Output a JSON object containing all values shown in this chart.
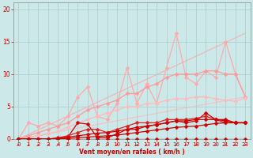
{
  "background_color": "#cce8e8",
  "grid_color": "#aacccc",
  "xlabel": "Vent moyen/en rafales ( km/h )",
  "xlabel_color": "#cc0000",
  "tick_color": "#cc0000",
  "xlim": [
    -0.5,
    23.5
  ],
  "ylim": [
    0,
    21
  ],
  "yticks": [
    0,
    5,
    10,
    15,
    20
  ],
  "xticks": [
    0,
    1,
    2,
    3,
    4,
    5,
    6,
    7,
    8,
    9,
    10,
    11,
    12,
    13,
    14,
    15,
    16,
    17,
    18,
    19,
    20,
    21,
    22,
    23
  ],
  "series": [
    {
      "x": [
        0,
        23
      ],
      "y": [
        0,
        16.3
      ],
      "color": "#ffaaaa",
      "linewidth": 0.8,
      "marker": null,
      "markersize": 0,
      "alpha": 0.9,
      "zorder": 1
    },
    {
      "x": [
        0,
        23
      ],
      "y": [
        0,
        6.5
      ],
      "color": "#ffbbbb",
      "linewidth": 0.8,
      "marker": null,
      "markersize": 0,
      "alpha": 0.9,
      "zorder": 1
    },
    {
      "x": [
        0,
        1,
        2,
        3,
        4,
        5,
        6,
        7,
        8,
        9,
        10,
        11,
        12,
        13,
        14,
        15,
        16,
        17,
        18,
        19,
        20,
        21,
        22,
        23
      ],
      "y": [
        0,
        2.5,
        2.0,
        2.5,
        2.0,
        3.5,
        6.5,
        8.0,
        3.5,
        3.0,
        5.5,
        11.0,
        5.5,
        8.5,
        5.5,
        11.0,
        16.3,
        9.5,
        8.5,
        10.5,
        9.5,
        15.0,
        10.0,
        6.5
      ],
      "color": "#ffaaaa",
      "linewidth": 0.9,
      "marker": "D",
      "markersize": 2.5,
      "alpha": 1.0,
      "zorder": 2
    },
    {
      "x": [
        0,
        1,
        2,
        3,
        4,
        5,
        6,
        7,
        8,
        9,
        10,
        11,
        12,
        13,
        14,
        15,
        16,
        17,
        18,
        19,
        20,
        21,
        22,
        23
      ],
      "y": [
        0,
        0.5,
        1.0,
        1.5,
        2.0,
        2.5,
        3.5,
        4.5,
        5.0,
        5.5,
        6.0,
        7.0,
        7.0,
        8.0,
        8.5,
        9.5,
        10.0,
        10.0,
        10.0,
        10.5,
        10.5,
        10.0,
        10.0,
        6.5
      ],
      "color": "#ff9999",
      "linewidth": 0.9,
      "marker": "D",
      "markersize": 2.5,
      "alpha": 1.0,
      "zorder": 3
    },
    {
      "x": [
        0,
        1,
        2,
        3,
        4,
        5,
        6,
        7,
        8,
        9,
        10,
        11,
        12,
        13,
        14,
        15,
        16,
        17,
        18,
        19,
        20,
        21,
        22,
        23
      ],
      "y": [
        0,
        0.2,
        0.5,
        0.8,
        1.2,
        1.8,
        2.5,
        3.0,
        3.5,
        4.0,
        4.5,
        5.0,
        5.0,
        5.5,
        5.5,
        6.0,
        6.2,
        6.2,
        6.5,
        6.5,
        6.2,
        6.0,
        5.8,
        6.3
      ],
      "color": "#ffbbbb",
      "linewidth": 0.9,
      "marker": "D",
      "markersize": 2.5,
      "alpha": 1.0,
      "zorder": 3
    },
    {
      "x": [
        0,
        1,
        2,
        3,
        4,
        5,
        6,
        7,
        8,
        9,
        10,
        11,
        12,
        13,
        14,
        15,
        16,
        17,
        18,
        19,
        20,
        21,
        22,
        23
      ],
      "y": [
        0,
        0,
        0,
        0,
        0.1,
        0.3,
        2.5,
        2.3,
        0.2,
        0.2,
        0.8,
        1.5,
        1.5,
        2.0,
        2.2,
        2.5,
        2.8,
        2.5,
        2.8,
        4.0,
        3.0,
        3.0,
        2.5,
        2.5
      ],
      "color": "#cc0000",
      "linewidth": 0.9,
      "marker": "D",
      "markersize": 2.5,
      "alpha": 1.0,
      "zorder": 4
    },
    {
      "x": [
        0,
        1,
        2,
        3,
        4,
        5,
        6,
        7,
        8,
        9,
        10,
        11,
        12,
        13,
        14,
        15,
        16,
        17,
        18,
        19,
        20,
        21,
        22,
        23
      ],
      "y": [
        0,
        0,
        0,
        0,
        0.2,
        0.5,
        1.0,
        1.5,
        1.5,
        1.0,
        1.5,
        2.0,
        2.5,
        2.5,
        2.5,
        3.0,
        3.0,
        3.0,
        3.2,
        3.5,
        3.0,
        2.5,
        2.5,
        2.5
      ],
      "color": "#dd2222",
      "linewidth": 0.9,
      "marker": "D",
      "markersize": 2.5,
      "alpha": 1.0,
      "zorder": 4
    },
    {
      "x": [
        0,
        1,
        2,
        3,
        4,
        5,
        6,
        7,
        8,
        9,
        10,
        11,
        12,
        13,
        14,
        15,
        16,
        17,
        18,
        19,
        20,
        21,
        22,
        23
      ],
      "y": [
        0,
        0,
        0,
        0,
        0.1,
        0.3,
        0.5,
        0.7,
        0.9,
        1.0,
        1.2,
        1.5,
        1.8,
        2.0,
        2.2,
        2.5,
        2.8,
        2.8,
        3.0,
        3.0,
        3.0,
        2.8,
        2.5,
        2.5
      ],
      "color": "#cc0000",
      "linewidth": 0.9,
      "marker": "D",
      "markersize": 2.5,
      "alpha": 1.0,
      "zorder": 4
    },
    {
      "x": [
        0,
        1,
        2,
        3,
        4,
        5,
        6,
        7,
        8,
        9,
        10,
        11,
        12,
        13,
        14,
        15,
        16,
        17,
        18,
        19,
        20,
        21,
        22,
        23
      ],
      "y": [
        0,
        0,
        0,
        0,
        0,
        0.1,
        0.2,
        0.3,
        0.4,
        0.5,
        0.6,
        0.8,
        1.0,
        1.2,
        1.4,
        1.6,
        1.8,
        1.9,
        2.0,
        2.2,
        2.4,
        2.5,
        2.5,
        2.5
      ],
      "color": "#cc0000",
      "linewidth": 0.9,
      "marker": "D",
      "markersize": 2.5,
      "alpha": 1.0,
      "zorder": 4
    },
    {
      "x": [
        0,
        1,
        2,
        3,
        4,
        5,
        6,
        7,
        8,
        9,
        10,
        11,
        12,
        13,
        14,
        15,
        16,
        17,
        18,
        19,
        20,
        21,
        22,
        23
      ],
      "y": [
        0,
        0,
        0,
        0,
        0,
        0,
        0,
        0,
        0,
        0,
        0,
        0,
        0,
        0,
        0,
        0,
        0,
        0,
        0,
        0,
        0,
        0,
        0,
        0
      ],
      "color": "#cc0000",
      "linewidth": 0.9,
      "marker": "D",
      "markersize": 2.5,
      "alpha": 1.0,
      "zorder": 4
    }
  ],
  "wind_arrows_x": [
    0,
    1,
    2,
    3,
    4,
    5,
    6,
    7,
    8,
    9,
    10,
    11,
    12,
    13,
    14,
    15,
    16,
    17,
    18,
    19,
    20,
    21,
    22,
    23
  ],
  "wind_arrow_color": "#cc0000"
}
